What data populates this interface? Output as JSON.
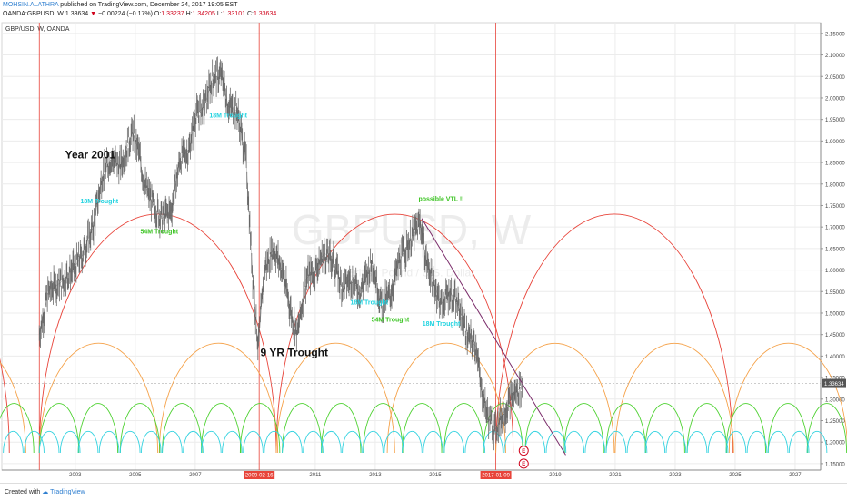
{
  "header": {
    "author": "MOHSIN.ALATHRA",
    "published": "published on TradingView.com, December 24, 2017 19:05 EST",
    "symbol": "OANDA:GBPUSD, W",
    "last": "1.33634",
    "change": "−0.00224 (−0.17%)",
    "o_label": "O:",
    "o": "1.33237",
    "h_label": "H:",
    "h": "1.34205",
    "l_label": "L:",
    "l": "1.33101",
    "c_label": "C:",
    "c": "1.33634"
  },
  "footer": {
    "created": "Created with",
    "brand": "TradingView"
  },
  "chart_data": {
    "type": "line",
    "legend": "GBP/USD, W, OANDA",
    "watermark_symbol": "GBPUSD, W",
    "watermark_name": "British Pound / U.S. Dollar",
    "price_axis": {
      "ticks": [
        2.15,
        2.1,
        2.05,
        2.0,
        1.95,
        1.9,
        1.85,
        1.8,
        1.75,
        1.7,
        1.65,
        1.6,
        1.55,
        1.5,
        1.45,
        1.4,
        1.35,
        1.3,
        1.25,
        1.2,
        1.15
      ],
      "tick_labels": [
        "2.15000",
        "2.10000",
        "2.05000",
        "2.00000",
        "1.95000",
        "1.90000",
        "1.85000",
        "1.80000",
        "1.75000",
        "1.70000",
        "1.65000",
        "1.60000",
        "1.55000",
        "1.50000",
        "1.45000",
        "1.40000",
        "1.35000",
        "1.30000",
        "1.25000",
        "1.20000",
        "1.15000"
      ],
      "range": [
        1.135,
        2.175
      ],
      "last_price": 1.33634,
      "last_price_label": "1.33634"
    },
    "time_axis": {
      "range": [
        2000.55,
        2027.85
      ],
      "ticks": [
        2003,
        2005,
        2007,
        2011,
        2013,
        2015,
        2019,
        2021,
        2023,
        2025,
        2027
      ],
      "tick_labels": [
        "2003",
        "2005",
        "2007",
        "2011",
        "2013",
        "2015",
        "2019",
        "2021",
        "2023",
        "2025",
        "2027"
      ],
      "highlighted": [
        {
          "x": 2009.13,
          "label": "2009-02-16"
        },
        {
          "x": 2017.02,
          "label": "2017-01-09"
        }
      ]
    },
    "cycle_lines": [
      2001.8,
      2009.13,
      2017.02
    ],
    "price_series": {
      "x": [
        2001.8,
        2002.1,
        2002.5,
        2002.9,
        2003.2,
        2003.6,
        2003.9,
        2004.2,
        2004.5,
        2004.9,
        2005.1,
        2005.3,
        2005.6,
        2005.9,
        2006.2,
        2006.5,
        2006.8,
        2007.0,
        2007.3,
        2007.6,
        2007.9,
        2008.1,
        2008.4,
        2008.7,
        2008.9,
        2009.1,
        2009.3,
        2009.6,
        2009.9,
        2010.2,
        2010.4,
        2010.7,
        2011.0,
        2011.3,
        2011.6,
        2011.9,
        2012.2,
        2012.5,
        2012.9,
        2013.2,
        2013.5,
        2013.8,
        2014.1,
        2014.5,
        2014.7,
        2014.9,
        2015.2,
        2015.5,
        2015.8,
        2016.1,
        2016.4,
        2016.5,
        2016.8,
        2017.0,
        2017.3,
        2017.6,
        2017.9
      ],
      "y": [
        1.45,
        1.55,
        1.57,
        1.6,
        1.63,
        1.7,
        1.82,
        1.86,
        1.84,
        1.92,
        1.88,
        1.8,
        1.75,
        1.72,
        1.74,
        1.86,
        1.88,
        1.96,
        1.98,
        2.05,
        2.05,
        1.98,
        1.97,
        1.85,
        1.6,
        1.42,
        1.6,
        1.65,
        1.6,
        1.5,
        1.45,
        1.58,
        1.6,
        1.64,
        1.62,
        1.56,
        1.58,
        1.55,
        1.62,
        1.52,
        1.54,
        1.62,
        1.66,
        1.71,
        1.62,
        1.58,
        1.52,
        1.55,
        1.51,
        1.44,
        1.42,
        1.33,
        1.25,
        1.23,
        1.27,
        1.31,
        1.33
      ]
    },
    "cycle_arcs": [
      {
        "name": "9 YR",
        "color": "#e8443a",
        "peak": 1.73,
        "starts": [
          1992.9,
          2001.8,
          2009.7,
          2017.02
        ]
      },
      {
        "name": "54M",
        "color": "#f5a24a",
        "peak": 1.43,
        "starts": [
          1997.4,
          2001.8,
          2005.8,
          2009.7,
          2013.4,
          2017.02,
          2021.0,
          2024.8
        ]
      },
      {
        "name": "18M",
        "color": "#4cd12f",
        "peak": 1.29,
        "starts": [
          2000.3,
          2001.8,
          2003.1,
          2004.5,
          2005.9,
          2007.2,
          2008.5,
          2009.9,
          2011.2,
          2012.6,
          2013.9,
          2015.3,
          2016.6,
          2018.0,
          2019.3,
          2020.7,
          2022.0,
          2023.4,
          2024.7,
          2026.1,
          2027.4
        ]
      },
      {
        "name": "9M",
        "color": "#36d3e0",
        "peak": 1.225,
        "starts": [
          2000.6,
          2001.3,
          2001.8,
          2002.5,
          2003.1,
          2003.8,
          2004.5,
          2005.2,
          2005.9,
          2006.6,
          2007.2,
          2007.9,
          2008.6,
          2009.3,
          2009.9,
          2010.6,
          2011.2,
          2011.9,
          2012.6,
          2013.3,
          2013.9,
          2014.6,
          2015.3,
          2016.0,
          2016.6,
          2017.3,
          2018.0,
          2018.7,
          2019.3,
          2020.0,
          2020.7,
          2021.4,
          2022.0,
          2022.7,
          2023.4,
          2024.1,
          2024.7,
          2025.4,
          2026.1,
          2026.8,
          2027.4
        ]
      }
    ],
    "cycle_period_years": {
      "9 YR": 7.9,
      "54M": 3.95,
      "18M": 1.317,
      "9M": 0.658
    },
    "annotations": [
      {
        "text": "Year 2001",
        "x": 2003.5,
        "y": 1.86,
        "color": "#111111",
        "kind": "large"
      },
      {
        "text": "9 YR Trought",
        "x": 2010.3,
        "y": 1.4,
        "color": "#111111",
        "kind": "large"
      },
      {
        "text": "18M Trought",
        "x": 2003.8,
        "y": 1.755,
        "color": "#22d3e0",
        "kind": "small"
      },
      {
        "text": "18M Trought",
        "x": 2008.1,
        "y": 1.955,
        "color": "#22d3e0",
        "kind": "small"
      },
      {
        "text": "54M Trought",
        "x": 2005.8,
        "y": 1.685,
        "color": "#3cc423",
        "kind": "small"
      },
      {
        "text": "18M Trought",
        "x": 2012.8,
        "y": 1.52,
        "color": "#22d3e0",
        "kind": "small"
      },
      {
        "text": "54M Trought",
        "x": 2013.5,
        "y": 1.48,
        "color": "#3cc423",
        "kind": "small"
      },
      {
        "text": "18M Trought",
        "x": 2015.2,
        "y": 1.47,
        "color": "#22d3e0",
        "kind": "small"
      },
      {
        "text": "possible VTL !!",
        "x": 2015.2,
        "y": 1.76,
        "color": "#3cc423",
        "kind": "small"
      }
    ],
    "trend_line": {
      "from": [
        2014.55,
        1.72
      ],
      "to": [
        2019.35,
        1.17
      ],
      "color": "#7b2d6b"
    },
    "flags": [
      {
        "x": 2017.95,
        "y": 1.18,
        "label": "E"
      },
      {
        "x": 2017.95,
        "y": 1.15,
        "label": "E"
      }
    ],
    "colors": {
      "up": "#3a3a3a",
      "bar": "#6a6a6a",
      "vline": "#e8443a",
      "axis_highlight": "#e8443a",
      "grid": "#ececec",
      "last_price_bg": "#555555"
    }
  }
}
